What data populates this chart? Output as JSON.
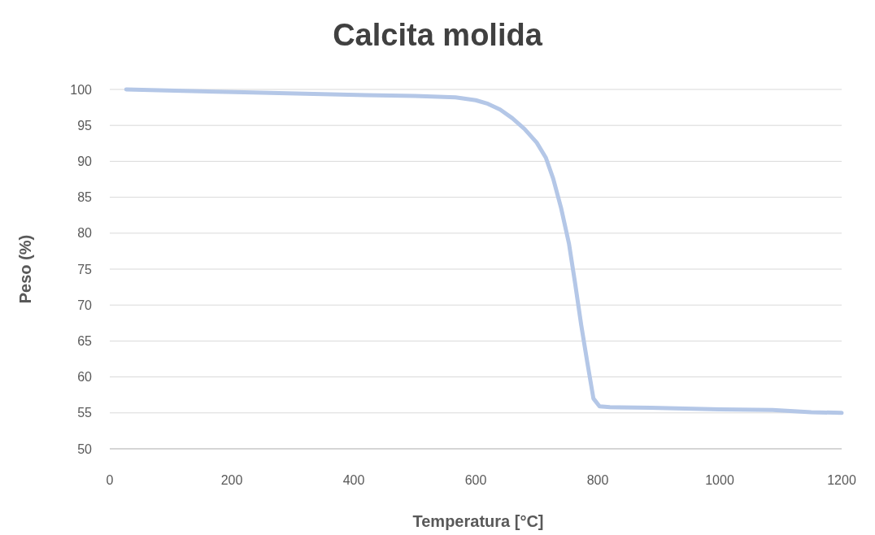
{
  "chart_data": {
    "type": "line",
    "title": "Calcita molida",
    "xlabel": "Temperatura [°C]",
    "ylabel": "Peso (%)",
    "series": [
      {
        "color": "#b4c7e7",
        "x": [
          27,
          120,
          220,
          320,
          420,
          500,
          567,
          600,
          620,
          640,
          660,
          680,
          700,
          715,
          727,
          740,
          753,
          763,
          773,
          783,
          793,
          803,
          820,
          887,
          1000,
          1087,
          1150,
          1200
        ],
        "values": [
          100,
          99.8,
          99.6,
          99.4,
          99.2,
          99.1,
          98.9,
          98.5,
          98,
          97.2,
          96,
          94.5,
          92.6,
          90.5,
          87.6,
          83.5,
          78.5,
          73,
          67.2,
          62,
          57,
          55.9,
          55.8,
          55.7,
          55.5,
          55.4,
          55.1,
          55
        ]
      }
    ],
    "xlim": [
      0,
      1200
    ],
    "xticks": [
      0,
      200,
      400,
      600,
      800,
      1000,
      1200
    ],
    "ylim": [
      50,
      100
    ],
    "yticks": [
      50,
      55,
      60,
      65,
      70,
      75,
      80,
      85,
      90,
      95,
      100
    ],
    "grid": "y",
    "marker": "none",
    "line_style": "solid"
  }
}
